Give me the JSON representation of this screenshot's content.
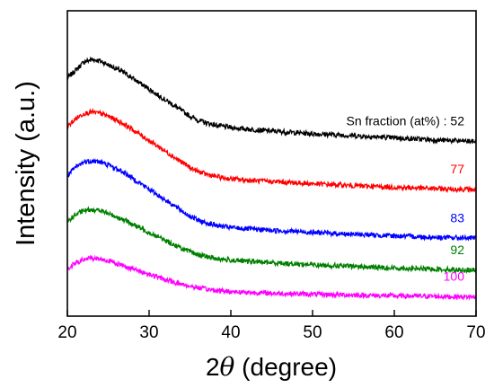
{
  "chart_data": {
    "type": "line",
    "xlabel_prefix": "2",
    "xlabel_symbol": "θ",
    "xlabel_suffix": " (degree)",
    "ylabel": "Intensity (a.u.)",
    "xlim": [
      20,
      70
    ],
    "x_ticks": [
      20,
      30,
      40,
      50,
      60,
      70
    ],
    "y_ticks_shown": false,
    "grid": false,
    "legend": "none",
    "series_label_prefix": "Sn fraction (at%) : ",
    "series": [
      {
        "name": "52",
        "color": "#000000",
        "points": [
          [
            20,
            0.8
          ],
          [
            21,
            0.83
          ],
          [
            22,
            0.86
          ],
          [
            23,
            0.87
          ],
          [
            24,
            0.865
          ],
          [
            25,
            0.85
          ],
          [
            26,
            0.835
          ],
          [
            27,
            0.82
          ],
          [
            28,
            0.8
          ],
          [
            29,
            0.78
          ],
          [
            30,
            0.76
          ],
          [
            31,
            0.74
          ],
          [
            32,
            0.72
          ],
          [
            33,
            0.7
          ],
          [
            34,
            0.68
          ],
          [
            35,
            0.66
          ],
          [
            36,
            0.645
          ],
          [
            37,
            0.635
          ],
          [
            38,
            0.628
          ],
          [
            39,
            0.622
          ],
          [
            40,
            0.618
          ],
          [
            42,
            0.612
          ],
          [
            45,
            0.605
          ],
          [
            50,
            0.595
          ],
          [
            55,
            0.588
          ],
          [
            60,
            0.58
          ],
          [
            65,
            0.572
          ],
          [
            70,
            0.566
          ]
        ]
      },
      {
        "name": "77",
        "color": "#ff0000",
        "points": [
          [
            20,
            0.62
          ],
          [
            21,
            0.65
          ],
          [
            22,
            0.67
          ],
          [
            23,
            0.675
          ],
          [
            24,
            0.67
          ],
          [
            25,
            0.66
          ],
          [
            26,
            0.645
          ],
          [
            27,
            0.63
          ],
          [
            28,
            0.61
          ],
          [
            29,
            0.59
          ],
          [
            30,
            0.57
          ],
          [
            31,
            0.55
          ],
          [
            32,
            0.53
          ],
          [
            33,
            0.51
          ],
          [
            34,
            0.49
          ],
          [
            35,
            0.47
          ],
          [
            36,
            0.455
          ],
          [
            37,
            0.445
          ],
          [
            38,
            0.438
          ],
          [
            39,
            0.432
          ],
          [
            40,
            0.428
          ],
          [
            42,
            0.423
          ],
          [
            45,
            0.418
          ],
          [
            50,
            0.41
          ],
          [
            55,
            0.403
          ],
          [
            60,
            0.397
          ],
          [
            65,
            0.392
          ],
          [
            70,
            0.388
          ]
        ]
      },
      {
        "name": "83",
        "color": "#0000ff",
        "points": [
          [
            20,
            0.44
          ],
          [
            21,
            0.47
          ],
          [
            22,
            0.49
          ],
          [
            23,
            0.495
          ],
          [
            24,
            0.49
          ],
          [
            25,
            0.48
          ],
          [
            26,
            0.465
          ],
          [
            27,
            0.45
          ],
          [
            28,
            0.43
          ],
          [
            29,
            0.41
          ],
          [
            30,
            0.39
          ],
          [
            31,
            0.37
          ],
          [
            32,
            0.35
          ],
          [
            33,
            0.33
          ],
          [
            34,
            0.31
          ],
          [
            35,
            0.29
          ],
          [
            36,
            0.275
          ],
          [
            37,
            0.265
          ],
          [
            38,
            0.258
          ],
          [
            39,
            0.252
          ],
          [
            40,
            0.248
          ],
          [
            42,
            0.243
          ],
          [
            45,
            0.238
          ],
          [
            50,
            0.23
          ],
          [
            55,
            0.223
          ],
          [
            60,
            0.217
          ],
          [
            65,
            0.212
          ],
          [
            70,
            0.208
          ]
        ]
      },
      {
        "name": "92",
        "color": "#008000",
        "points": [
          [
            20,
            0.27
          ],
          [
            21,
            0.295
          ],
          [
            22,
            0.31
          ],
          [
            23,
            0.315
          ],
          [
            24,
            0.31
          ],
          [
            25,
            0.3
          ],
          [
            26,
            0.288
          ],
          [
            27,
            0.275
          ],
          [
            28,
            0.26
          ],
          [
            29,
            0.245
          ],
          [
            30,
            0.23
          ],
          [
            31,
            0.215
          ],
          [
            32,
            0.2
          ],
          [
            33,
            0.185
          ],
          [
            34,
            0.17
          ],
          [
            35,
            0.158
          ],
          [
            36,
            0.148
          ],
          [
            37,
            0.14
          ],
          [
            38,
            0.134
          ],
          [
            39,
            0.13
          ],
          [
            40,
            0.127
          ],
          [
            42,
            0.123
          ],
          [
            45,
            0.118
          ],
          [
            50,
            0.11
          ],
          [
            55,
            0.104
          ],
          [
            60,
            0.098
          ],
          [
            65,
            0.094
          ],
          [
            70,
            0.09
          ]
        ]
      },
      {
        "name": "100",
        "color": "#ff00ff",
        "points": [
          [
            20,
            0.095
          ],
          [
            21,
            0.115
          ],
          [
            22,
            0.13
          ],
          [
            23,
            0.135
          ],
          [
            24,
            0.132
          ],
          [
            25,
            0.125
          ],
          [
            26,
            0.115
          ],
          [
            27,
            0.105
          ],
          [
            28,
            0.095
          ],
          [
            29,
            0.085
          ],
          [
            30,
            0.075
          ],
          [
            31,
            0.065
          ],
          [
            32,
            0.055
          ],
          [
            33,
            0.046
          ],
          [
            34,
            0.038
          ],
          [
            35,
            0.031
          ],
          [
            36,
            0.025
          ],
          [
            37,
            0.02
          ],
          [
            38,
            0.016
          ],
          [
            39,
            0.013
          ],
          [
            40,
            0.011
          ],
          [
            42,
            0.008
          ],
          [
            45,
            0.005
          ],
          [
            50,
            0.001
          ],
          [
            55,
            -0.002
          ],
          [
            60,
            -0.005
          ],
          [
            65,
            -0.007
          ],
          [
            70,
            -0.009
          ]
        ]
      }
    ]
  }
}
